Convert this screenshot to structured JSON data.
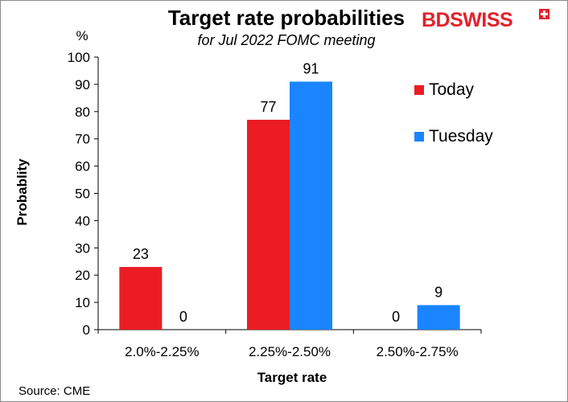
{
  "brand": {
    "part1": "BD",
    "part2": "SWISS"
  },
  "source": "Source: CME",
  "colors": {
    "today": "#ec1c24",
    "tuesday": "#1a85ff",
    "brand": "#e3212b"
  },
  "chart_data": {
    "type": "bar",
    "title": "Target rate probabilities",
    "subtitle": "for Jul 2022 FOMC meeting",
    "ylabel": "Probablity",
    "yunit": "%",
    "xlabel": "Target rate",
    "ylim": [
      0,
      100
    ],
    "yticks": [
      "0",
      "10",
      "20",
      "30",
      "40",
      "50",
      "60",
      "70",
      "80",
      "90",
      "100"
    ],
    "categories": [
      "2.0%-2.25%",
      "2.25%-2.50%",
      "2.50%-2.75%"
    ],
    "series": [
      {
        "name": "Today",
        "values": [
          23,
          77,
          0
        ],
        "labels": [
          "23",
          "77",
          "0"
        ]
      },
      {
        "name": "Tuesday",
        "values": [
          0,
          91,
          9
        ],
        "labels": [
          "0",
          "91",
          "9"
        ]
      }
    ],
    "legend_position": "top-right",
    "grid": false
  }
}
